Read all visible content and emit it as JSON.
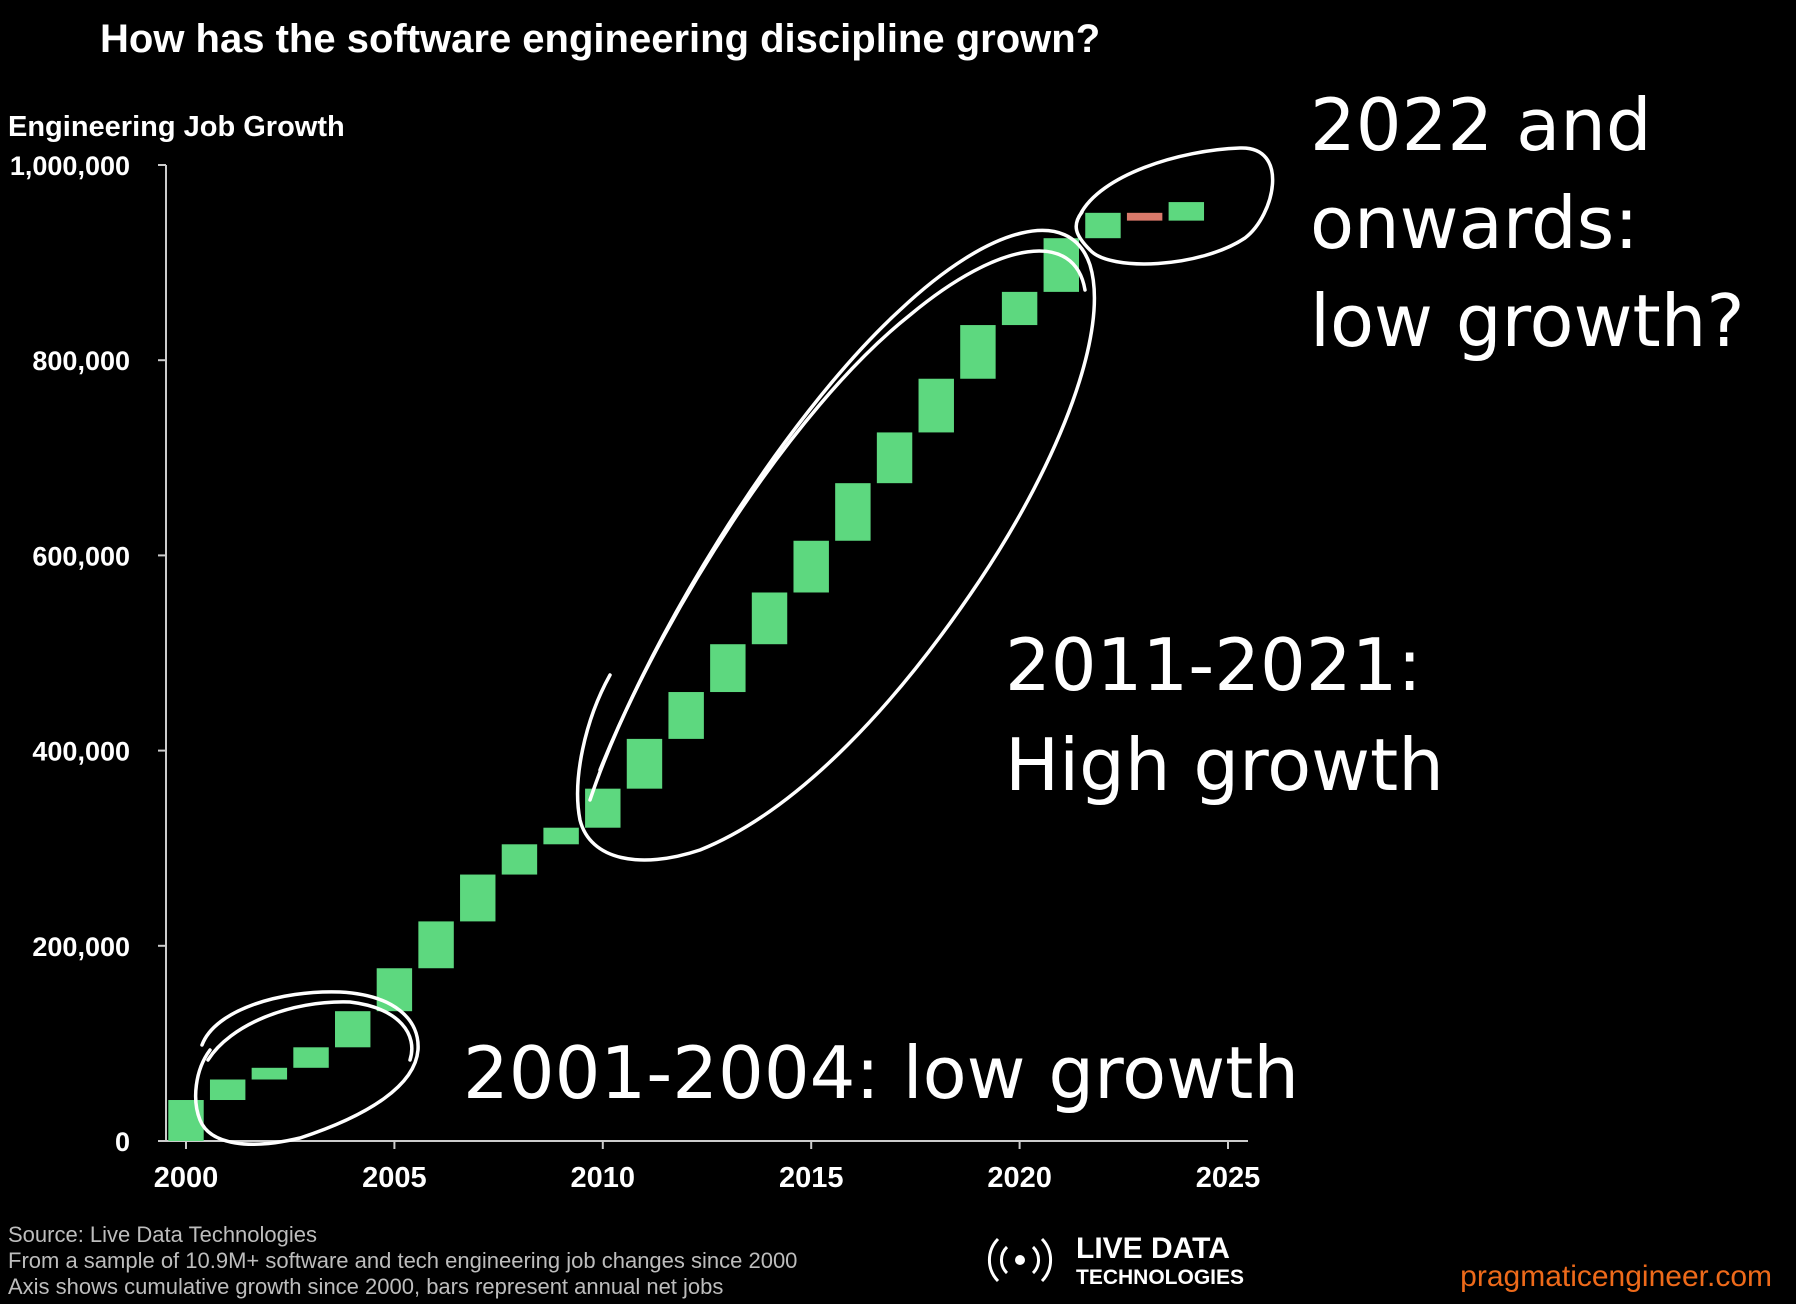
{
  "title": "How has the software engineering discipline grown?",
  "colors": {
    "background": "#000000",
    "positive": "#5dd87f",
    "negative": "#d9796a",
    "axis": "#cccccc",
    "text": "#ffffff",
    "footnote": "#bdbdbd",
    "site": "#ee6a1a"
  },
  "chart_data": {
    "type": "waterfall",
    "ylabel": "Engineering Job Growth",
    "xlabel": "",
    "xlim": [
      2000,
      2025
    ],
    "ylim": [
      0,
      1000000
    ],
    "x_ticks": [
      "2000",
      "2005",
      "2010",
      "2015",
      "2020",
      "2025"
    ],
    "y_ticks": [
      "0",
      "200,000",
      "400,000",
      "600,000",
      "800,000",
      "1,000,000"
    ],
    "grid": false,
    "bars": [
      {
        "year": 2000,
        "start": 0,
        "end": 42000
      },
      {
        "year": 2001,
        "start": 42000,
        "end": 63000
      },
      {
        "year": 2002,
        "start": 63000,
        "end": 75000
      },
      {
        "year": 2003,
        "start": 75000,
        "end": 96000
      },
      {
        "year": 2004,
        "start": 96000,
        "end": 133000
      },
      {
        "year": 2005,
        "start": 133000,
        "end": 177000
      },
      {
        "year": 2006,
        "start": 177000,
        "end": 225000
      },
      {
        "year": 2007,
        "start": 225000,
        "end": 273000
      },
      {
        "year": 2008,
        "start": 273000,
        "end": 304000
      },
      {
        "year": 2009,
        "start": 304000,
        "end": 321000
      },
      {
        "year": 2010,
        "start": 321000,
        "end": 361000
      },
      {
        "year": 2011,
        "start": 361000,
        "end": 412000
      },
      {
        "year": 2012,
        "start": 412000,
        "end": 460000
      },
      {
        "year": 2013,
        "start": 460000,
        "end": 509000
      },
      {
        "year": 2014,
        "start": 509000,
        "end": 562000
      },
      {
        "year": 2015,
        "start": 562000,
        "end": 615000
      },
      {
        "year": 2016,
        "start": 615000,
        "end": 674000
      },
      {
        "year": 2017,
        "start": 674000,
        "end": 726000
      },
      {
        "year": 2018,
        "start": 726000,
        "end": 781000
      },
      {
        "year": 2019,
        "start": 781000,
        "end": 836000
      },
      {
        "year": 2020,
        "start": 836000,
        "end": 870000
      },
      {
        "year": 2021,
        "start": 870000,
        "end": 925000
      },
      {
        "year": 2022,
        "start": 925000,
        "end": 951000
      },
      {
        "year": 2023,
        "start": 951000,
        "end": 943000
      },
      {
        "year": 2024,
        "start": 943000,
        "end": 962000
      }
    ]
  },
  "annotations": {
    "low_early": "2001-2004: low growth",
    "high_mid_1": "2011-2021:",
    "high_mid_2": "High growth",
    "late_1": "2022 and",
    "late_2": "onwards:",
    "late_3": "low growth?"
  },
  "footnotes": [
    "Source: Live Data Technologies",
    "From a sample of 10.9M+ software and tech engineering job changes since 2000",
    "Axis shows cumulative growth since 2000, bars represent annual net jobs"
  ],
  "logo": {
    "icon": "broadcast-icon",
    "line1": "LIVE DATA",
    "line2": "TECHNOLOGIES"
  },
  "site": "pragmaticengineer.com"
}
